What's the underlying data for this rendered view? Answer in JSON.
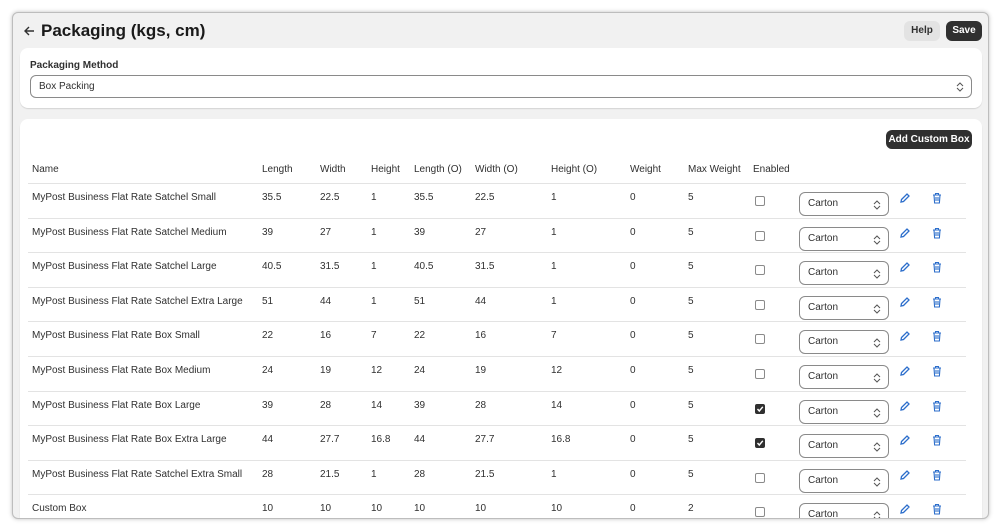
{
  "header": {
    "title": "Packaging (kgs, cm)",
    "help_button": "Help",
    "save_button": "Save"
  },
  "packaging_method": {
    "label": "Packaging Method",
    "value": "Box Packing"
  },
  "table": {
    "add_button": "Add Custom Box",
    "columns": [
      "Name",
      "Length",
      "Width",
      "Height",
      "Length (O)",
      "Width (O)",
      "Height (O)",
      "Weight",
      "Max Weight",
      "Enabled"
    ],
    "rows": [
      {
        "cells": [
          "MyPost Business Flat Rate Satchel Small",
          35.5,
          22.5,
          1,
          35.5,
          22.5,
          1,
          0,
          5
        ],
        "enabled": false,
        "box_type": "Carton"
      },
      {
        "cells": [
          "MyPost Business Flat Rate Satchel Medium",
          39,
          27,
          1,
          39,
          27,
          1,
          0,
          5
        ],
        "enabled": false,
        "box_type": "Carton"
      },
      {
        "cells": [
          "MyPost Business Flat Rate Satchel Large",
          40.5,
          31.5,
          1,
          40.5,
          31.5,
          1,
          0,
          5
        ],
        "enabled": false,
        "box_type": "Carton"
      },
      {
        "cells": [
          "MyPost Business Flat Rate Satchel Extra Large",
          51,
          44,
          1,
          51,
          44,
          1,
          0,
          5
        ],
        "enabled": false,
        "box_type": "Carton"
      },
      {
        "cells": [
          "MyPost Business Flat Rate Box Small",
          22,
          16,
          7,
          22,
          16,
          7,
          0,
          5
        ],
        "enabled": false,
        "box_type": "Carton"
      },
      {
        "cells": [
          "MyPost Business Flat Rate Box Medium",
          24,
          19,
          12,
          24,
          19,
          12,
          0,
          5
        ],
        "enabled": false,
        "box_type": "Carton"
      },
      {
        "cells": [
          "MyPost Business Flat Rate Box Large",
          39,
          28,
          14,
          39,
          28,
          14,
          0,
          5
        ],
        "enabled": true,
        "box_type": "Carton"
      },
      {
        "cells": [
          "MyPost Business Flat Rate Box Extra Large",
          44,
          27.7,
          16.8,
          44,
          27.7,
          16.8,
          0,
          5
        ],
        "enabled": true,
        "box_type": "Carton"
      },
      {
        "cells": [
          "MyPost Business Flat Rate Satchel Extra Small",
          28,
          21.5,
          1,
          28,
          21.5,
          1,
          0,
          5
        ],
        "enabled": false,
        "box_type": "Carton"
      },
      {
        "cells": [
          "Custom Box",
          10,
          10,
          10,
          10,
          10,
          10,
          0,
          2
        ],
        "enabled": false,
        "box_type": "Carton"
      }
    ]
  }
}
